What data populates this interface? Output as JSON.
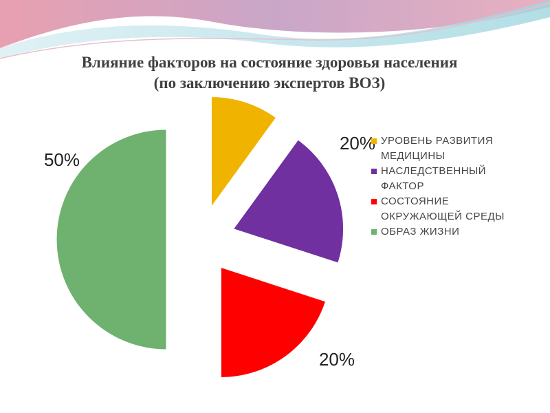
{
  "chart_data": {
    "type": "pie",
    "title": "Влияние факторов на состояние здоровья населения",
    "subtitle": "(по заключению экспертов ВОЗ)",
    "categories": [
      "УРОВЕНЬ РАЗВИТИЯ МЕДИЦИНЫ",
      "НАСЛЕДСТВЕННЫЙ ФАКТОР",
      "СОСТОЯНИЕ ОКРУЖАЮЩЕЙ СРЕДЫ",
      "ОБРАЗ ЖИЗНИ"
    ],
    "values": [
      10,
      20,
      20,
      50
    ],
    "value_labels": [
      null,
      "20%",
      "20%",
      "50%"
    ],
    "colors": [
      "#f0b400",
      "#7030a0",
      "#ff0000",
      "#6fb26f"
    ],
    "legend": "right"
  }
}
